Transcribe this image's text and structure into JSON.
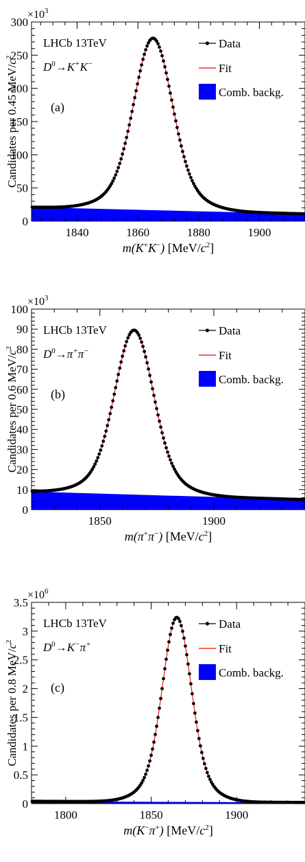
{
  "chart_data": [
    {
      "type": "line",
      "panel_label": "(a)",
      "experiment": "LHCb 13TeV",
      "decay_prefix": "D",
      "decay_sup": "0",
      "decay_arrow": "→",
      "decay_final": [
        "K",
        "+",
        "K",
        "−"
      ],
      "ylabel_main": "Candidates per 0.45 MeV/",
      "ylabel_unit": "c",
      "ylabel_exp": "2",
      "multiplier_base": "×10",
      "multiplier_exp": "3",
      "xlabel_particles": [
        "m(K",
        "+",
        "K",
        "−",
        ")"
      ],
      "xlabel_units": " [MeV/",
      "xlabel_c": "c",
      "xlabel_exp": "2",
      "xlabel_close": "]",
      "xlim": [
        1825,
        1915
      ],
      "ylim": [
        0,
        300
      ],
      "xticks": [
        1840,
        1860,
        1880,
        1900
      ],
      "xtick_labels": [
        "1840",
        "1860",
        "1880",
        "1900"
      ],
      "yticks": [
        0,
        50,
        100,
        150,
        200,
        250,
        300
      ],
      "ytick_labels": [
        "0",
        "50",
        "100",
        "150",
        "200",
        "250",
        "300"
      ],
      "legend": [
        "Data",
        "Fit",
        "Comb. backg."
      ],
      "peak": {
        "mean": 1865,
        "height": 280,
        "sigma_core": 6.0
      },
      "background": {
        "start": 21,
        "end": 11
      },
      "grid": false,
      "legend_position": "top-right"
    },
    {
      "type": "line",
      "panel_label": "(b)",
      "experiment": "LHCb 13TeV",
      "decay_prefix": "D",
      "decay_sup": "0",
      "decay_arrow": "→",
      "decay_final": [
        "π",
        "+",
        "π",
        "−"
      ],
      "ylabel_main": "Candidates per 0.6 MeV/",
      "ylabel_unit": "c",
      "ylabel_exp": "2",
      "multiplier_base": "×10",
      "multiplier_exp": "3",
      "xlabel_particles": [
        "m(π",
        "+",
        "π",
        "−",
        ")"
      ],
      "xlabel_units": " [MeV/",
      "xlabel_c": "c",
      "xlabel_exp": "2",
      "xlabel_close": "]",
      "xlim": [
        1820,
        1940
      ],
      "ylim": [
        0,
        100
      ],
      "xticks": [
        1850,
        1900
      ],
      "xtick_labels": [
        "1850",
        "1900"
      ],
      "yticks": [
        0,
        10,
        20,
        30,
        40,
        50,
        60,
        70,
        80,
        90,
        100
      ],
      "ytick_labels": [
        "0",
        "10",
        "20",
        "30",
        "40",
        "50",
        "60",
        "70",
        "80",
        "90",
        "100"
      ],
      "legend": [
        "Data",
        "Fit",
        "Comb. backg."
      ],
      "peak": {
        "mean": 1865,
        "height": 91,
        "sigma_core": 8.0
      },
      "background": {
        "start": 9,
        "end": 5
      },
      "grid": false,
      "legend_position": "top-right"
    },
    {
      "type": "line",
      "panel_label": "(c)",
      "experiment": "LHCb 13TeV",
      "decay_prefix": "D",
      "decay_sup": "0",
      "decay_arrow": "→",
      "decay_final": [
        "K",
        "−",
        "π",
        "+"
      ],
      "ylabel_main": "Candidates per 0.8 MeV/",
      "ylabel_unit": "c",
      "ylabel_exp": "2",
      "multiplier_base": "×10",
      "multiplier_exp": "6",
      "xlabel_particles": [
        "m(K",
        "−",
        "π",
        "+",
        ")"
      ],
      "xlabel_units": " [MeV/",
      "xlabel_c": "c",
      "xlabel_exp": "2",
      "xlabel_close": "]",
      "xlim": [
        1780,
        1940
      ],
      "ylim": [
        0,
        3.5
      ],
      "xticks": [
        1800,
        1850,
        1900
      ],
      "xtick_labels": [
        "1800",
        "1850",
        "1900"
      ],
      "yticks": [
        0,
        0.5,
        1,
        1.5,
        2,
        2.5,
        3,
        3.5
      ],
      "ytick_labels": [
        "0",
        "0.5",
        "1",
        "1.5",
        "2",
        "2.5",
        "3",
        "3.5"
      ],
      "legend": [
        "Data",
        "Fit",
        "Comb. backg."
      ],
      "peak": {
        "mean": 1865,
        "height": 3.25,
        "sigma_core": 8.0
      },
      "background": {
        "start": 0.04,
        "end": 0.02
      },
      "grid": false,
      "legend_position": "top-right"
    }
  ],
  "colors": {
    "data": "#000000",
    "fit": "#ff0000",
    "background": "#0000ff"
  }
}
